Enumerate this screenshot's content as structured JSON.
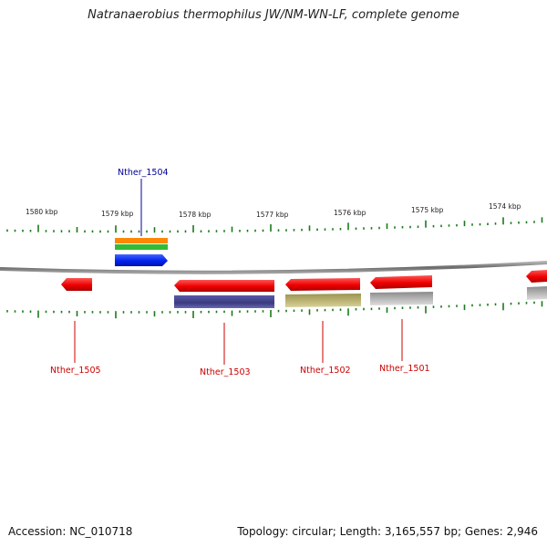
{
  "title": "Natranaerobius thermophilus JW/NM-WN-LF, complete genome",
  "scale": {
    "tick_labels": [
      "1580 kbp",
      "1579 kbp",
      "1578 kbp",
      "1577 kbp",
      "1576 kbp",
      "1575 kbp",
      "1574 kbp"
    ]
  },
  "genes": [
    {
      "name": "Nther_1504",
      "color": "#000099"
    },
    {
      "name": "Nther_1505",
      "color": "#cc0000"
    },
    {
      "name": "Nther_1503",
      "color": "#cc0000"
    },
    {
      "name": "Nther_1502",
      "color": "#cc0000"
    },
    {
      "name": "Nther_1501",
      "color": "#cc0000"
    }
  ],
  "footer": {
    "accession": "Accession: NC_010718",
    "summary": "Topology: circular; Length: 3,165,557 bp; Genes: 2,946"
  },
  "colors": {
    "backbone": "#808080",
    "tick": "#1a7a1a",
    "gene_red": "#ee0000",
    "gene_blue": "#0022ee",
    "gene_orange": "#ff8800",
    "gene_green": "#33bb33",
    "gene_navy": "#3a3a80",
    "gene_olive": "#b5ad6a",
    "gene_gray": "#b0b0b0"
  }
}
